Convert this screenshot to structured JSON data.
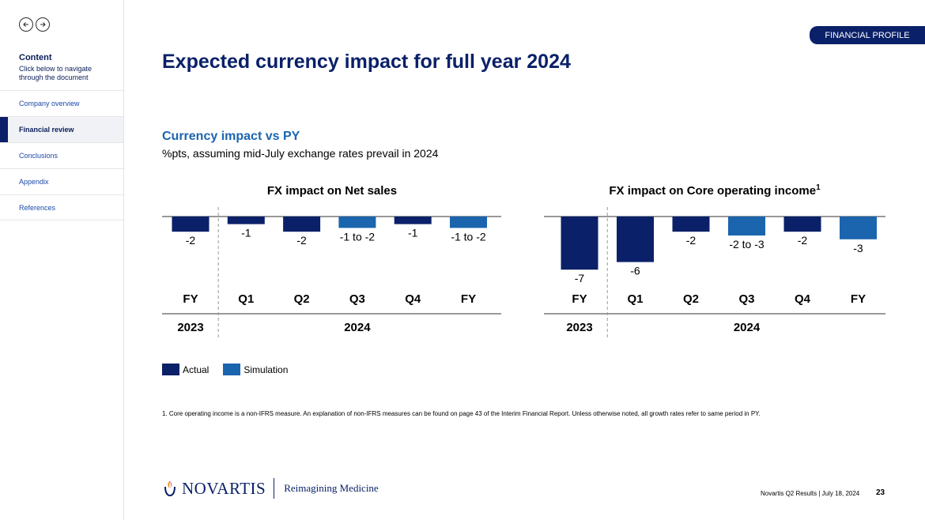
{
  "sidebar": {
    "content_title": "Content",
    "content_sub": "Click below to navigate through the document",
    "items": [
      {
        "label": "Company overview"
      },
      {
        "label": "Financial review"
      },
      {
        "label": "Conclusions"
      },
      {
        "label": "Appendix"
      },
      {
        "label": "References"
      }
    ],
    "active_index": 1
  },
  "header": {
    "tag": "FINANCIAL PROFILE",
    "title": "Expected currency impact for full year 2024",
    "subtitle": "Currency impact vs PY",
    "subline": "%pts, assuming mid-July exchange rates prevail in 2024"
  },
  "colors": {
    "actual": "#0a2068",
    "simulation": "#1b65ae"
  },
  "legend": {
    "actual": "Actual",
    "simulation": "Simulation"
  },
  "chart_data": [
    {
      "type": "bar",
      "title": "FX impact on Net sales",
      "title_sup": "",
      "categories": [
        "FY",
        "Q1",
        "Q2",
        "Q3",
        "Q4",
        "FY"
      ],
      "groups": [
        {
          "label": "2023",
          "span": [
            0,
            0
          ]
        },
        {
          "label": "2024",
          "span": [
            1,
            5
          ]
        }
      ],
      "values": [
        -2,
        -1,
        -2,
        -1.5,
        -1,
        -1.5
      ],
      "labels": [
        "-2",
        "-1",
        "-2",
        "-1 to -2",
        "-1",
        "-1 to -2"
      ],
      "kinds": [
        "actual",
        "actual",
        "actual",
        "simulation",
        "actual",
        "simulation"
      ],
      "ylim": [
        -8,
        0
      ]
    },
    {
      "type": "bar",
      "title": "FX impact on Core operating income",
      "title_sup": "1",
      "categories": [
        "FY",
        "Q1",
        "Q2",
        "Q3",
        "Q4",
        "FY"
      ],
      "groups": [
        {
          "label": "2023",
          "span": [
            0,
            0
          ]
        },
        {
          "label": "2024",
          "span": [
            1,
            5
          ]
        }
      ],
      "values": [
        -7,
        -6,
        -2,
        -2.5,
        -2,
        -3
      ],
      "labels": [
        "-7",
        "-6",
        "-2",
        "-2 to -3",
        "-2",
        "-3"
      ],
      "kinds": [
        "actual",
        "actual",
        "actual",
        "simulation",
        "actual",
        "simulation"
      ],
      "ylim": [
        -8,
        0
      ]
    }
  ],
  "footnote": "1. Core operating income is a non-IFRS measure. An explanation of non-IFRS measures can be found on page 43 of the Interim Financial Report. Unless otherwise noted, all growth rates refer to same period in PY.",
  "footer": {
    "logo_word": "NOVARTIS",
    "logo_tag": "Reimagining Medicine",
    "text": "Novartis Q2 Results | July 18, 2024",
    "page": "23"
  }
}
